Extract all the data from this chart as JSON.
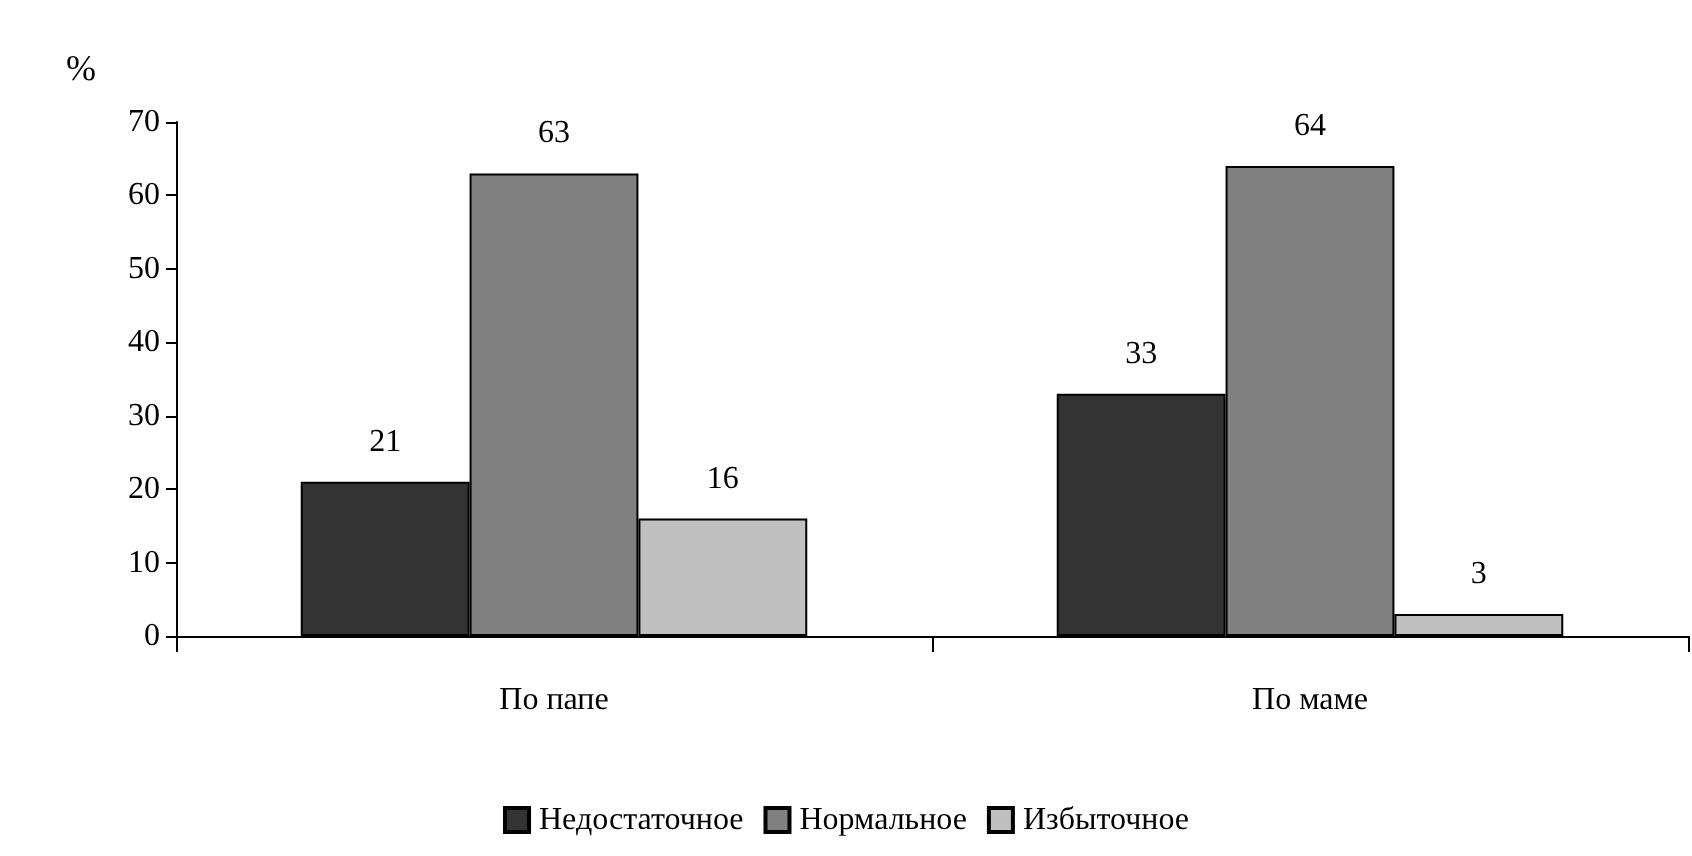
{
  "chart_data": {
    "type": "bar",
    "ylabel": "%",
    "categories": [
      "По папе",
      "По маме"
    ],
    "series": [
      {
        "name": "Недостаточное",
        "color": "#333333",
        "values": [
          21,
          33
        ]
      },
      {
        "name": "Нормальное",
        "color": "#808080",
        "values": [
          63,
          64
        ]
      },
      {
        "name": "Избыточное",
        "color": "#c0c0c0",
        "values": [
          16,
          3
        ]
      }
    ],
    "ylim": [
      0,
      70
    ],
    "yticks": [
      0,
      10,
      20,
      30,
      40,
      50,
      60,
      70
    ],
    "data_labels": true,
    "grid": false,
    "legend": "bottom"
  }
}
